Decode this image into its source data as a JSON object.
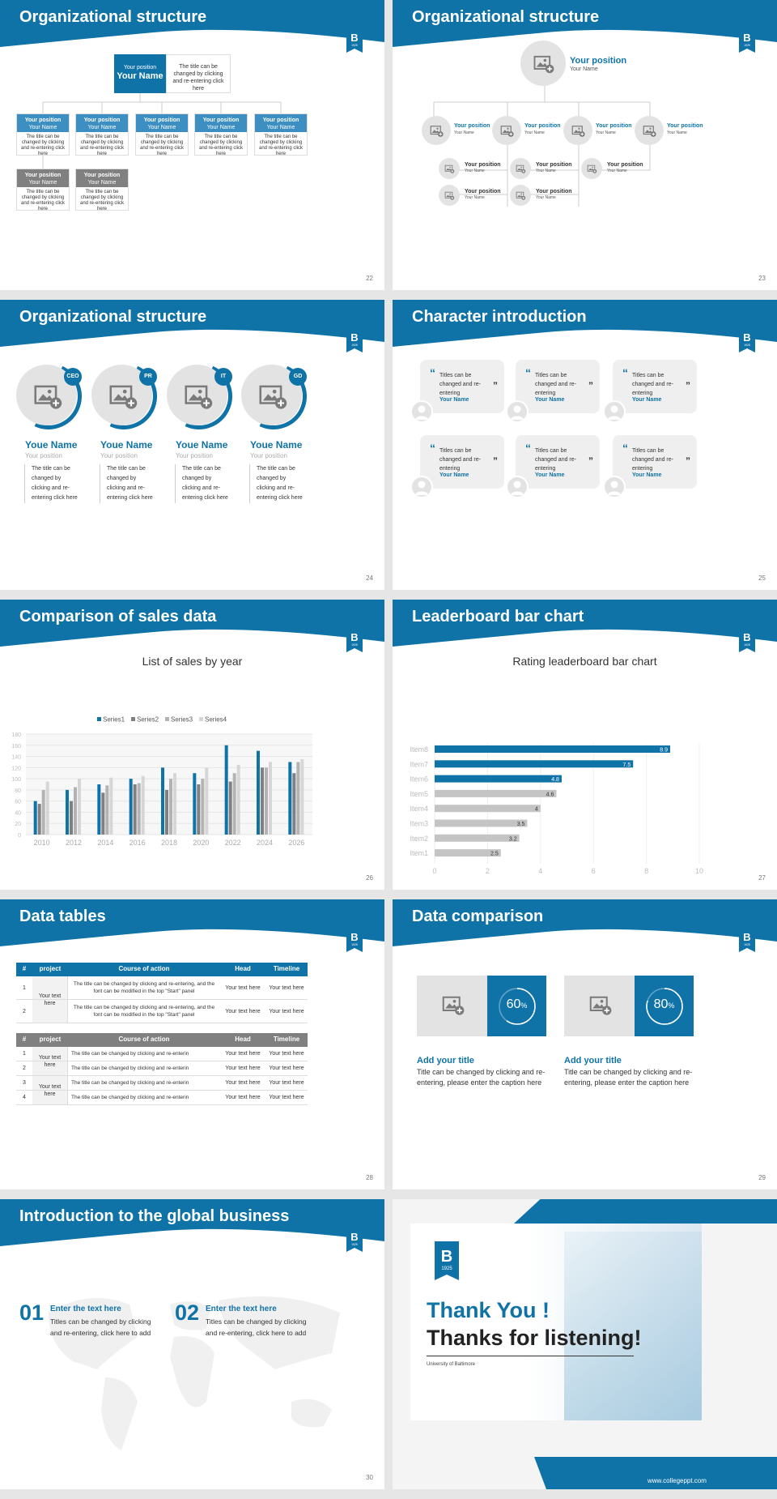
{
  "colors": {
    "primary": "#0f73a8",
    "gray": "#808080",
    "light": "#e3e3e3"
  },
  "icons": {
    "logo": "university-b-badge-icon",
    "image": "image-placeholder-icon",
    "user": "user-avatar-icon",
    "quote": "quote-icon"
  },
  "s22": {
    "title": "Organizational structure",
    "top_position": "Your position",
    "top_name": "Your Name",
    "top_desc": "The title can be changed by clicking and re-entering click here",
    "position": "Your position",
    "name": "Your Name",
    "desc": "The title can be changed by clicking and re-entering click here",
    "page": "22"
  },
  "s23": {
    "title": "Organizational structure",
    "top_position": "Your position",
    "top_name": "Your Name",
    "position": "Your position",
    "name": "Your Name",
    "page": "23"
  },
  "s24": {
    "title": "Organizational structure",
    "tags": [
      "CEO",
      "PR",
      "IT",
      "GD"
    ],
    "name": "Youe Name",
    "position": "Your position",
    "desc": "The title can be changed by clicking and re-entering click here",
    "page": "24"
  },
  "s25": {
    "title": "Character introduction",
    "card_text": "Titles can be changed and re-entering",
    "name": "Your Name",
    "page": "25"
  },
  "s26": {
    "title": "Comparison of sales data",
    "chart_title": "List of sales by year",
    "page": "26"
  },
  "s27": {
    "title": "Leaderboard bar chart",
    "chart_title": "Rating leaderboard bar chart",
    "page": "27"
  },
  "chart_data": [
    {
      "type": "bar",
      "title": "List of sales by year",
      "categories": [
        "2010",
        "2012",
        "2014",
        "2016",
        "2018",
        "2020",
        "2022",
        "2024",
        "2026"
      ],
      "series": [
        {
          "name": "Series1",
          "values": [
            60,
            80,
            90,
            100,
            120,
            110,
            160,
            150,
            130
          ]
        },
        {
          "name": "Series2",
          "values": [
            55,
            60,
            75,
            90,
            80,
            90,
            95,
            120,
            110
          ]
        },
        {
          "name": "Series3",
          "values": [
            80,
            85,
            88,
            92,
            100,
            100,
            110,
            120,
            130
          ]
        },
        {
          "name": "Series4",
          "values": [
            95,
            100,
            102,
            105,
            110,
            120,
            125,
            130,
            135
          ]
        }
      ],
      "ylim": [
        0,
        180
      ],
      "yticks": [
        0,
        20,
        40,
        60,
        80,
        100,
        120,
        140,
        160,
        180
      ],
      "grid": true,
      "legend": "top"
    },
    {
      "type": "bar",
      "orientation": "horizontal",
      "title": "Rating leaderboard bar chart",
      "categories": [
        "Item8",
        "Item7",
        "Item6",
        "Item5",
        "Item4",
        "Item3",
        "Item2",
        "Item1"
      ],
      "values": [
        8.9,
        7.5,
        4.8,
        4.6,
        4,
        3.5,
        3.2,
        2.5
      ],
      "xlim": [
        0,
        10
      ],
      "xticks": [
        0,
        2,
        4,
        6,
        8,
        10
      ]
    }
  ],
  "s28": {
    "title": "Data tables",
    "headers": [
      "#",
      "project",
      "Course of action",
      "Head",
      "Timeline"
    ],
    "t1_project": "Your text here",
    "t1_rows": [
      {
        "n": "1",
        "action": "The title can be changed by clicking and re-entering, and the font can be modified in the top \"Start\" panel",
        "head": "Your text here",
        "time": "Your text here"
      },
      {
        "n": "2",
        "action": "The title can be changed by clicking and re-entering, and the font can be modified in the top \"Start\" panel",
        "head": "Your text here",
        "time": "Your text here"
      }
    ],
    "t2_project_a": "Your text here",
    "t2_project_b": "Your text here",
    "t2_rows": [
      {
        "n": "1",
        "action": "The title can be changed by clicking and re-enterin",
        "head": "Your text here",
        "time": "Your text here"
      },
      {
        "n": "2",
        "action": "The title can be changed by clicking and re-enterin",
        "head": "Your text here",
        "time": "Your text here"
      },
      {
        "n": "3",
        "action": "The title can be changed by clicking and re-enterin",
        "head": "Your text here",
        "time": "Your text here"
      },
      {
        "n": "4",
        "action": "The title can be changed by clicking and re-enterin",
        "head": "Your text here",
        "time": "Your text here"
      }
    ],
    "page": "28"
  },
  "s29": {
    "title": "Data comparison",
    "items": [
      {
        "percent_label": "60",
        "percent_value": 60,
        "unit": "%",
        "heading": "Add your title",
        "text": "Title can be changed by clicking and re-entering, please enter the caption here"
      },
      {
        "percent_label": "80",
        "percent_value": 80,
        "unit": "%",
        "heading": "Add your title",
        "text": "Title can be changed by clicking and re-entering, please enter the caption here"
      }
    ],
    "page": "29"
  },
  "s30": {
    "title": "Introduction to the global business",
    "items": [
      {
        "num": "01",
        "heading": "Enter the text here",
        "text": "Titles can be changed by clicking and re-entering, click here to add"
      },
      {
        "num": "02",
        "heading": "Enter the text here",
        "text": "Titles can be changed by clicking and re-entering, click here to add"
      }
    ],
    "page": "30"
  },
  "s31": {
    "thanks": "Thank You !",
    "listening": "Thanks for listening!",
    "university": "University of Baltimore",
    "website": "www.collegeppt.com",
    "logo_letter": "B",
    "logo_year": "1925"
  }
}
